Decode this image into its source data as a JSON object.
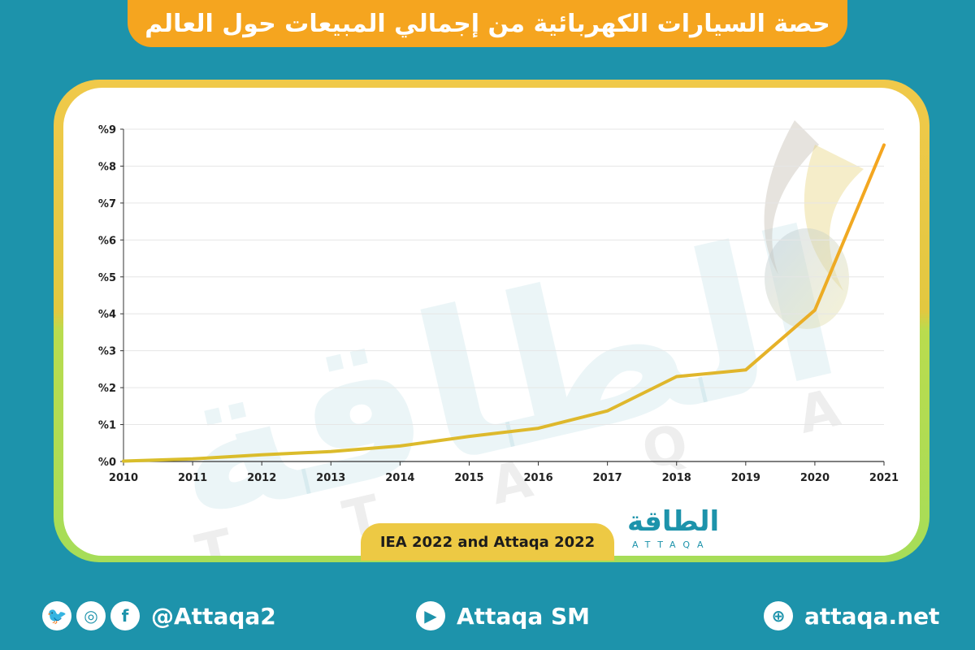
{
  "title": "حصة السيارات الكهربائية من إجمالي المبيعات حول العالم",
  "source": "IEA  2022 and Attaqa 2022",
  "watermark": {
    "arabic": "الطاقة",
    "latin": "A T T A Q A"
  },
  "logo": {
    "arabic": "الطاقة",
    "latin": "ATTAQA"
  },
  "footer": {
    "social_handle": "@Attaqa2",
    "youtube": "Attaqa SM",
    "website": "attaqa.net",
    "icons": [
      "twitter-icon",
      "instagram-icon",
      "facebook-icon",
      "youtube-icon",
      "globe-icon"
    ]
  },
  "colors": {
    "background": "#1d93ab",
    "title_pill": "#f5a51f",
    "line_start": "#d9be2b",
    "line_end": "#f5a51f",
    "source_pill": "#edc944"
  },
  "chart_data": {
    "type": "line",
    "title": "حصة السيارات الكهربائية من إجمالي المبيعات حول العالم",
    "x": [
      "2010",
      "2011",
      "2012",
      "2013",
      "2014",
      "2015",
      "2016",
      "2017",
      "2018",
      "2019",
      "2020",
      "2021"
    ],
    "series": [
      {
        "values": [
          0.01,
          0.07,
          0.18,
          0.27,
          0.42,
          0.68,
          0.9,
          1.37,
          2.3,
          2.48,
          4.1,
          8.57
        ]
      }
    ],
    "y_ticks": [
      "%0",
      "%1",
      "%2",
      "%3",
      "%4",
      "%5",
      "%6",
      "%7",
      "%8",
      "%9"
    ],
    "ylim": [
      0,
      9
    ],
    "grid": true,
    "legend": "none"
  }
}
